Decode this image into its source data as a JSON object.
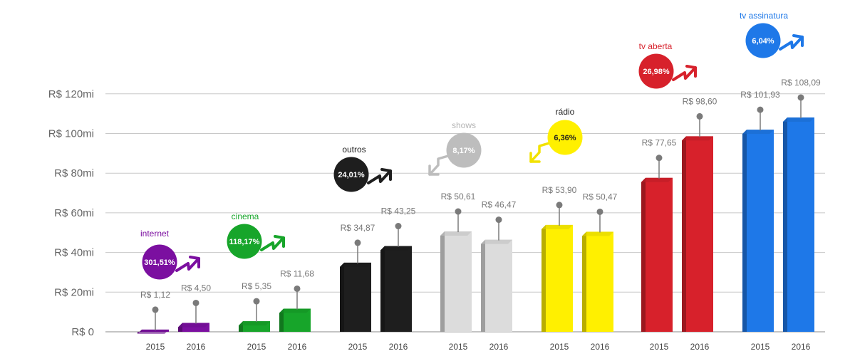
{
  "chart_data": {
    "type": "bar",
    "ylim": [
      0,
      120
    ],
    "y_ticks": [
      "R$ 0",
      "R$ 20mi",
      "R$ 40mi",
      "R$ 60mi",
      "R$ 80mi",
      "R$ 100mi",
      "R$ 120mi"
    ],
    "x_ticks": [
      "2015",
      "2016"
    ],
    "grid": true,
    "groups": [
      {
        "name": "internet",
        "color": "#7b0fa0",
        "pct_text_color": "#ffffff",
        "change": "301,51%",
        "trend": "up",
        "values": [
          1.12,
          4.5
        ],
        "labels": [
          "R$ 1,12",
          "R$ 4,50"
        ]
      },
      {
        "name": "cinema",
        "color": "#17a52a",
        "pct_text_color": "#ffffff",
        "change": "118,17%",
        "trend": "up",
        "values": [
          5.35,
          11.68
        ],
        "labels": [
          "R$ 5,35",
          "R$ 11,68"
        ]
      },
      {
        "name": "outros",
        "color": "#1e1e1e",
        "pct_text_color": "#ffffff",
        "change": "24,01%",
        "trend": "up",
        "values": [
          34.87,
          43.25
        ],
        "labels": [
          "R$ 34,87",
          "R$ 43,25"
        ]
      },
      {
        "name": "shows",
        "color": "#dcdcdc",
        "pct_text_color": "#ffffff",
        "label_color": "#b4b4b4",
        "circle_color": "#bdbdbd",
        "change": "8,17%",
        "trend": "down",
        "values": [
          50.61,
          46.47
        ],
        "labels": [
          "R$ 50,61",
          "R$ 46,47"
        ]
      },
      {
        "name": "rádio",
        "color": "#fff000",
        "pct_text_color": "#1e1e1e",
        "label_color": "#1e1e1e",
        "arrow_color": "#f2e200",
        "change": "6,36%",
        "trend": "down",
        "values": [
          53.9,
          50.47
        ],
        "labels": [
          "R$ 53,90",
          "R$ 50,47"
        ]
      },
      {
        "name": "tv aberta",
        "color": "#d7212b",
        "pct_text_color": "#ffffff",
        "change": "26,98%",
        "trend": "up",
        "values": [
          77.65,
          98.6
        ],
        "labels": [
          "R$ 77,65",
          "R$ 98,60"
        ]
      },
      {
        "name": "tv assinatura",
        "color": "#1e78e8",
        "pct_text_color": "#ffffff",
        "change": "6,04%",
        "trend": "up",
        "values": [
          101.93,
          108.09
        ],
        "labels": [
          "R$ 101,93",
          "R$ 108,09"
        ]
      }
    ]
  }
}
